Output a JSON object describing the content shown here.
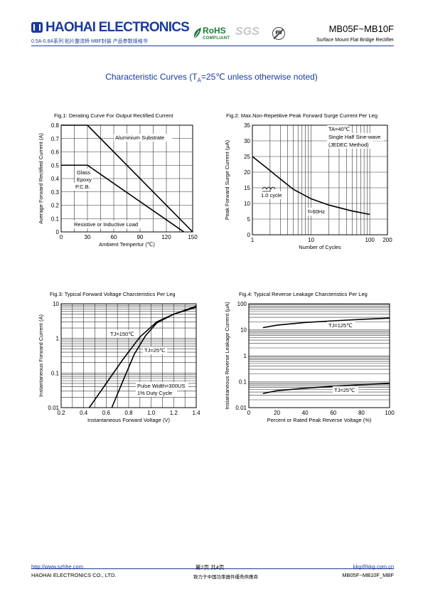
{
  "header": {
    "company": "HAOHAI ELECTRONICS",
    "subtitle": "0.5A-0.8A系列 贴片整流桥 MBF封装 产品参数规格书",
    "part_number": "MB05F~MB10F",
    "part_description": "Surface Mount Flat Bridge Rectifier",
    "rohs": "RoHS",
    "rohs_sub": "COMPLIANT",
    "sgs": "SGS",
    "pb": "Pb"
  },
  "page_title": {
    "prefix": "Characteristic Curves (T",
    "sub": "A",
    "suffix": "=25℃ unless otherwise noted)"
  },
  "figures": [
    {
      "title": "Fig.1: Derating Curve For Output Rectified Current",
      "chart_data": {
        "type": "line",
        "xlabel": "Ambient Tempertur (℃)",
        "ylabel": "Average Forward Rectified Current (A)",
        "xlim": [
          0,
          150
        ],
        "ylim": [
          0,
          0.8
        ],
        "xticks": [
          "0",
          "30",
          "60",
          "90",
          "120",
          "150"
        ],
        "yticks": [
          "0",
          "0.1",
          "0.2",
          "0.3",
          "0.4",
          "0.5",
          "0.6",
          "0.7",
          "0.8"
        ],
        "grid": true,
        "series": [
          {
            "name": "Aluminium Substrate",
            "x": [
              0,
              30,
              150
            ],
            "y": [
              0.8,
              0.8,
              0
            ]
          },
          {
            "name": "Glass Epoxy P.C.B.",
            "x": [
              0,
              30,
              140
            ],
            "y": [
              0.5,
              0.5,
              0
            ]
          }
        ],
        "annotations": [
          "Aluminium Substrate",
          "Glass",
          "Epoxy",
          "P.C.B.",
          "Resistive or Inductive Load"
        ]
      }
    },
    {
      "title": "Fig.2: Max.Non-Repetitive Peak Forward Surge Current Per Leg",
      "chart_data": {
        "type": "line",
        "xlabel": "Number of Cycles",
        "ylabel": "Peak Forward Surge Current (μA)",
        "xscale": "log",
        "xlim": [
          1,
          200
        ],
        "ylim": [
          0,
          35
        ],
        "xticks": [
          "1",
          "10",
          "100",
          "200"
        ],
        "yticks": [
          "0",
          "5",
          "10",
          "15",
          "20",
          "25",
          "30",
          "35"
        ],
        "grid": true,
        "series": [
          {
            "x": [
              1,
              2,
              3,
              5,
              10,
              20,
              50,
              100
            ],
            "y": [
              25,
              20.5,
              17.8,
              14.5,
              11.5,
              9.5,
              7.6,
              6.5
            ]
          }
        ],
        "annotations": [
          "TA=40℃",
          "Single Half Sine-wave",
          "(JEDEC Method)",
          "1.0 cycle",
          "f=60Hz"
        ]
      }
    },
    {
      "title": "Fig.3: Typical Forward Voltage Charcteristics Per Leg",
      "chart_data": {
        "type": "line",
        "xlabel": "Instantaneous Forward Voltage (V)",
        "ylabel": "Instantaneous Forward Current (A)",
        "yscale": "log",
        "xlim": [
          0.2,
          1.4
        ],
        "ylim": [
          0.01,
          10
        ],
        "xticks": [
          "0.2",
          "0.4",
          "0.6",
          "0.8",
          "1.0",
          "1.2",
          "1.4"
        ],
        "yticks": [
          "0.01",
          "0.1",
          "1",
          "10"
        ],
        "grid": true,
        "series": [
          {
            "name": "TJ=150℃",
            "x": [
              0.45,
              0.6,
              0.75,
              0.9,
              1.05,
              1.2,
              1.4
            ],
            "y": [
              0.01,
              0.05,
              0.25,
              1.1,
              3.0,
              5.0,
              8.5
            ]
          },
          {
            "name": "TJ=25℃",
            "x": [
              0.65,
              0.75,
              0.85,
              0.95,
              1.05,
              1.2,
              1.4
            ],
            "y": [
              0.01,
              0.06,
              0.35,
              1.2,
              2.8,
              5.0,
              8.0
            ]
          }
        ],
        "annotations": [
          "TJ=150℃",
          "TJ=25℃",
          "Pulse Width=300US",
          "1% Duty Cycle"
        ]
      }
    },
    {
      "title": "Fig.4: Typical Reverse Leakage Charcteristics Per Leg",
      "chart_data": {
        "type": "line",
        "xlabel": "Percent or Rated Peak Reverse Voltage (%)",
        "ylabel": "Instantaneous Reverse Leakage Current (μA)",
        "yscale": "log",
        "xlim": [
          0,
          100
        ],
        "ylim": [
          0.01,
          100
        ],
        "xticks": [
          "0",
          "20",
          "40",
          "60",
          "80",
          "100"
        ],
        "yticks": [
          "0.01",
          "0.1",
          "1",
          "10",
          "100"
        ],
        "grid": true,
        "series": [
          {
            "name": "TJ=125℃",
            "x": [
              10,
              20,
              40,
              60,
              80,
              100
            ],
            "y": [
              12,
              15,
              19,
              22,
              25,
              28
            ]
          },
          {
            "name": "TJ=25℃",
            "x": [
              10,
              20,
              40,
              60,
              80,
              100
            ],
            "y": [
              0.035,
              0.045,
              0.056,
              0.066,
              0.076,
              0.085
            ]
          }
        ],
        "annotations": [
          "TJ=125℃",
          "TJ=25℃"
        ]
      }
    }
  ],
  "footer": {
    "website": "http://www.szhhe.com",
    "page": "第2页   共4页",
    "email": "kkg@kkg.com.cn",
    "company": "HAOHAI ELECTRONICS CO., LTD.",
    "slogan": "致力于中国功率器件優秀供應商",
    "doc_id": "MB05F~MB10F_MBF"
  }
}
